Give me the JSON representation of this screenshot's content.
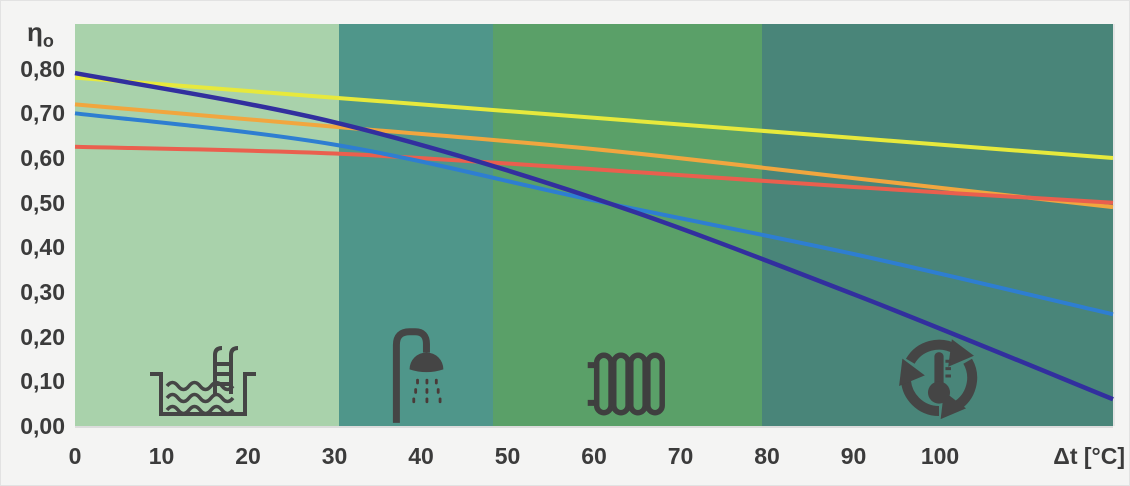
{
  "page": {
    "background_color": "#f4f4f3",
    "text_color": "#3b3b3b",
    "icon_color": "#454545"
  },
  "chart_data": {
    "type": "line",
    "title": "",
    "grid": false,
    "legend": false,
    "y_axis": {
      "label_eta": "η",
      "label_sub": "o",
      "min": 0.0,
      "max": 0.9,
      "ticks": [
        "0,80",
        "0,70",
        "0,60",
        "0,50",
        "0,40",
        "0,30",
        "0,20",
        "0,10",
        "0,00"
      ]
    },
    "x_axis": {
      "label": "Δt [°C]",
      "min": 0,
      "max": 120,
      "ticks": [
        "0",
        "10",
        "20",
        "30",
        "40",
        "50",
        "60",
        "70",
        "80",
        "90",
        "100"
      ]
    },
    "x": [
      0,
      30,
      60,
      90,
      120
    ],
    "series": [
      {
        "name": "yellow-line",
        "color": "#e7e93c",
        "width": 4,
        "values": [
          0.78,
          0.735,
          0.69,
          0.645,
          0.6
        ]
      },
      {
        "name": "orange-line",
        "color": "#f1a63f",
        "width": 4,
        "values": [
          0.72,
          0.67,
          0.62,
          0.555,
          0.49
        ]
      },
      {
        "name": "red-line",
        "color": "#ea5f4e",
        "width": 4,
        "values": [
          0.625,
          0.61,
          0.575,
          0.535,
          0.5
        ]
      },
      {
        "name": "light-blue-line",
        "color": "#2e7ed1",
        "width": 4,
        "values": [
          0.7,
          0.63,
          0.505,
          0.385,
          0.25
        ]
      },
      {
        "name": "dark-blue-line",
        "color": "#322f9e",
        "width": 4.5,
        "values": [
          0.79,
          0.68,
          0.51,
          0.295,
          0.06
        ]
      }
    ],
    "zones": [
      {
        "name": "swimming-pool-zone",
        "icon": "swimming-pool-icon",
        "color": "#a9d2ab",
        "from": 0,
        "to": 30.5
      },
      {
        "name": "shower-zone",
        "icon": "shower-icon",
        "color": "#4f968a",
        "from": 30.5,
        "to": 48.3
      },
      {
        "name": "radiator-zone",
        "icon": "radiator-icon",
        "color": "#5aa068",
        "from": 48.3,
        "to": 79.4
      },
      {
        "name": "heat-cycle-zone",
        "icon": "heat-cycle-icon",
        "color": "#498579",
        "from": 79.4,
        "to": 120
      }
    ]
  }
}
